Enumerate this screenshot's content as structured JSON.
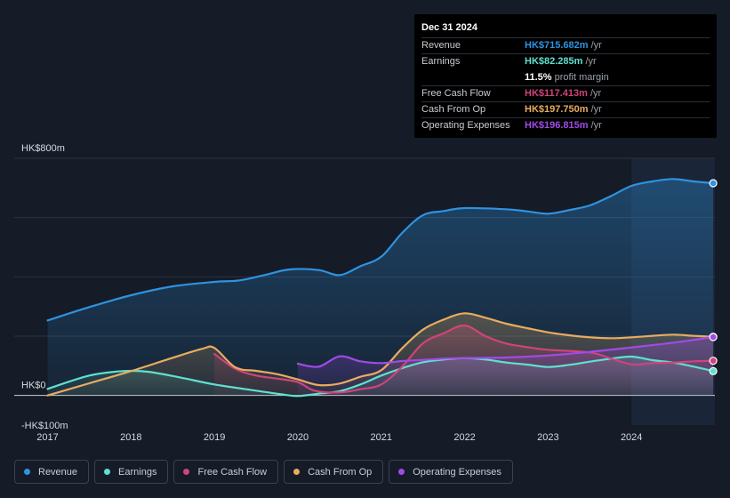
{
  "chart_data": {
    "type": "area",
    "y_axis_labels": [
      "HK$800m",
      "HK$0",
      "-HK$100m"
    ],
    "ylim": [
      -100,
      800
    ],
    "xlim": [
      2016.6,
      2025.0
    ],
    "x_ticks": [
      "2017",
      "2018",
      "2019",
      "2020",
      "2021",
      "2022",
      "2023",
      "2024"
    ],
    "forecast_start": 2024.0,
    "series": [
      {
        "name": "Revenue",
        "color": "#2e93e0",
        "points": [
          [
            2017.0,
            253
          ],
          [
            2017.5,
            298
          ],
          [
            2018.0,
            338
          ],
          [
            2018.5,
            368
          ],
          [
            2019.0,
            383
          ],
          [
            2019.3,
            388
          ],
          [
            2019.6,
            406
          ],
          [
            2019.9,
            425
          ],
          [
            2020.25,
            423
          ],
          [
            2020.5,
            406
          ],
          [
            2020.75,
            436
          ],
          [
            2021.0,
            468
          ],
          [
            2021.25,
            548
          ],
          [
            2021.5,
            608
          ],
          [
            2021.75,
            622
          ],
          [
            2022.0,
            632
          ],
          [
            2022.5,
            628
          ],
          [
            2022.75,
            621
          ],
          [
            2023.0,
            613
          ],
          [
            2023.25,
            625
          ],
          [
            2023.5,
            641
          ],
          [
            2023.75,
            672
          ],
          [
            2024.0,
            707
          ],
          [
            2024.25,
            722
          ],
          [
            2024.5,
            730
          ],
          [
            2024.75,
            722
          ],
          [
            2024.98,
            716
          ]
        ]
      },
      {
        "name": "Earnings",
        "color": "#5fe0cf",
        "points": [
          [
            2017.0,
            22
          ],
          [
            2017.5,
            67
          ],
          [
            2017.9,
            82
          ],
          [
            2018.2,
            80
          ],
          [
            2018.6,
            60
          ],
          [
            2019.0,
            37
          ],
          [
            2019.5,
            16
          ],
          [
            2019.8,
            4
          ],
          [
            2020.0,
            -2
          ],
          [
            2020.25,
            6
          ],
          [
            2020.5,
            14
          ],
          [
            2020.75,
            37
          ],
          [
            2021.0,
            67
          ],
          [
            2021.25,
            92
          ],
          [
            2021.5,
            112
          ],
          [
            2021.75,
            121
          ],
          [
            2022.0,
            126
          ],
          [
            2022.25,
            121
          ],
          [
            2022.5,
            111
          ],
          [
            2022.75,
            104
          ],
          [
            2023.0,
            96
          ],
          [
            2023.25,
            103
          ],
          [
            2023.5,
            114
          ],
          [
            2023.75,
            124
          ],
          [
            2024.0,
            131
          ],
          [
            2024.25,
            119
          ],
          [
            2024.5,
            111
          ],
          [
            2024.75,
            97
          ],
          [
            2024.98,
            82
          ]
        ]
      },
      {
        "name": "Free Cash Flow",
        "color": "#d1437a",
        "points": [
          [
            2019.0,
            140
          ],
          [
            2019.25,
            90
          ],
          [
            2019.5,
            67
          ],
          [
            2019.75,
            57
          ],
          [
            2020.0,
            45
          ],
          [
            2020.2,
            16
          ],
          [
            2020.5,
            10
          ],
          [
            2020.75,
            21
          ],
          [
            2021.0,
            37
          ],
          [
            2021.25,
            97
          ],
          [
            2021.5,
            176
          ],
          [
            2021.75,
            210
          ],
          [
            2022.0,
            236
          ],
          [
            2022.25,
            200
          ],
          [
            2022.5,
            175
          ],
          [
            2022.75,
            163
          ],
          [
            2023.0,
            154
          ],
          [
            2023.5,
            145
          ],
          [
            2023.75,
            125
          ],
          [
            2024.0,
            105
          ],
          [
            2024.25,
            109
          ],
          [
            2024.5,
            111
          ],
          [
            2024.75,
            115
          ],
          [
            2024.98,
            117
          ]
        ]
      },
      {
        "name": "Cash From Op",
        "color": "#e8ac5e",
        "points": [
          [
            2017.0,
            0
          ],
          [
            2017.5,
            41
          ],
          [
            2018.0,
            82
          ],
          [
            2018.5,
            127
          ],
          [
            2018.85,
            157
          ],
          [
            2019.0,
            160
          ],
          [
            2019.25,
            95
          ],
          [
            2019.5,
            83
          ],
          [
            2019.75,
            72
          ],
          [
            2020.0,
            54
          ],
          [
            2020.25,
            35
          ],
          [
            2020.5,
            40
          ],
          [
            2020.75,
            63
          ],
          [
            2021.0,
            85
          ],
          [
            2021.25,
            159
          ],
          [
            2021.5,
            222
          ],
          [
            2021.75,
            256
          ],
          [
            2022.0,
            277
          ],
          [
            2022.25,
            262
          ],
          [
            2022.5,
            242
          ],
          [
            2022.75,
            227
          ],
          [
            2023.0,
            213
          ],
          [
            2023.25,
            203
          ],
          [
            2023.5,
            196
          ],
          [
            2023.75,
            193
          ],
          [
            2024.0,
            196
          ],
          [
            2024.25,
            201
          ],
          [
            2024.5,
            205
          ],
          [
            2024.75,
            201
          ],
          [
            2024.98,
            198
          ]
        ]
      },
      {
        "name": "Operating Expenses",
        "color": "#a24ae8",
        "points": [
          [
            2020.0,
            107
          ],
          [
            2020.25,
            97
          ],
          [
            2020.5,
            132
          ],
          [
            2020.75,
            115
          ],
          [
            2021.0,
            109
          ],
          [
            2021.25,
            116
          ],
          [
            2021.5,
            120
          ],
          [
            2021.75,
            124
          ],
          [
            2022.0,
            126
          ],
          [
            2022.5,
            128
          ],
          [
            2023.0,
            135
          ],
          [
            2023.5,
            147
          ],
          [
            2024.0,
            162
          ],
          [
            2024.5,
            178
          ],
          [
            2024.98,
            197
          ]
        ]
      }
    ]
  },
  "tooltip": {
    "date": "Dec 31 2024",
    "rows": [
      {
        "label": "Revenue",
        "value": "HK$715.682m",
        "unit": "/yr",
        "color": "#2e93e0"
      },
      {
        "label": "Earnings",
        "value": "HK$82.285m",
        "unit": "/yr",
        "color": "#5fe0cf"
      },
      {
        "label": "",
        "value": "11.5%",
        "unit": "profit margin",
        "color": "#ffffff"
      },
      {
        "label": "Free Cash Flow",
        "value": "HK$117.413m",
        "unit": "/yr",
        "color": "#d1437a"
      },
      {
        "label": "Cash From Op",
        "value": "HK$197.750m",
        "unit": "/yr",
        "color": "#e8ac5e"
      },
      {
        "label": "Operating Expenses",
        "value": "HK$196.815m",
        "unit": "/yr",
        "color": "#a24ae8"
      }
    ]
  },
  "legend": [
    {
      "label": "Revenue",
      "color": "#2e93e0"
    },
    {
      "label": "Earnings",
      "color": "#5fe0cf"
    },
    {
      "label": "Free Cash Flow",
      "color": "#d1437a"
    },
    {
      "label": "Cash From Op",
      "color": "#e8ac5e"
    },
    {
      "label": "Operating Expenses",
      "color": "#a24ae8"
    }
  ]
}
